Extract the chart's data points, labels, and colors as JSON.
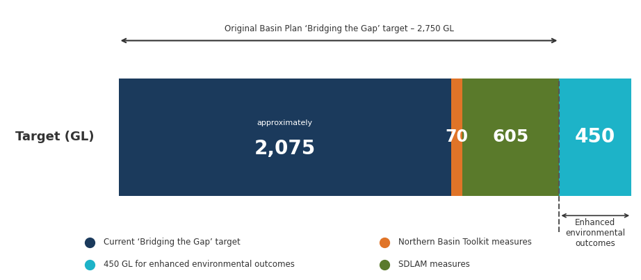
{
  "segments": [
    2075,
    70,
    605,
    450
  ],
  "colors": [
    "#1b3a5c",
    "#e07428",
    "#5a7a2b",
    "#1db3c8"
  ],
  "total_2750": 2750,
  "background_color": "#ffffff",
  "ylabel": "Target (GL)",
  "segment_labels": [
    "2,075",
    "70",
    "605",
    "450"
  ],
  "segment_sublabel": "approximately",
  "arrow_label": "Original Basin Plan ‘Bridging the Gap’ target – 2,750 GL",
  "enhanced_arrow_label": "← Enhanced →",
  "enhanced_text": "environmental\noutcomes",
  "legend_items": [
    {
      "label": "Current ‘Bridging the Gap’ target",
      "color": "#1b3a5c"
    },
    {
      "label": "Northern Basin Toolkit measures",
      "color": "#e07428"
    },
    {
      "label": "450 GL for enhanced environmental outcomes",
      "color": "#1db3c8"
    },
    {
      "label": "SDLAM measures",
      "color": "#5a7a2b"
    }
  ]
}
